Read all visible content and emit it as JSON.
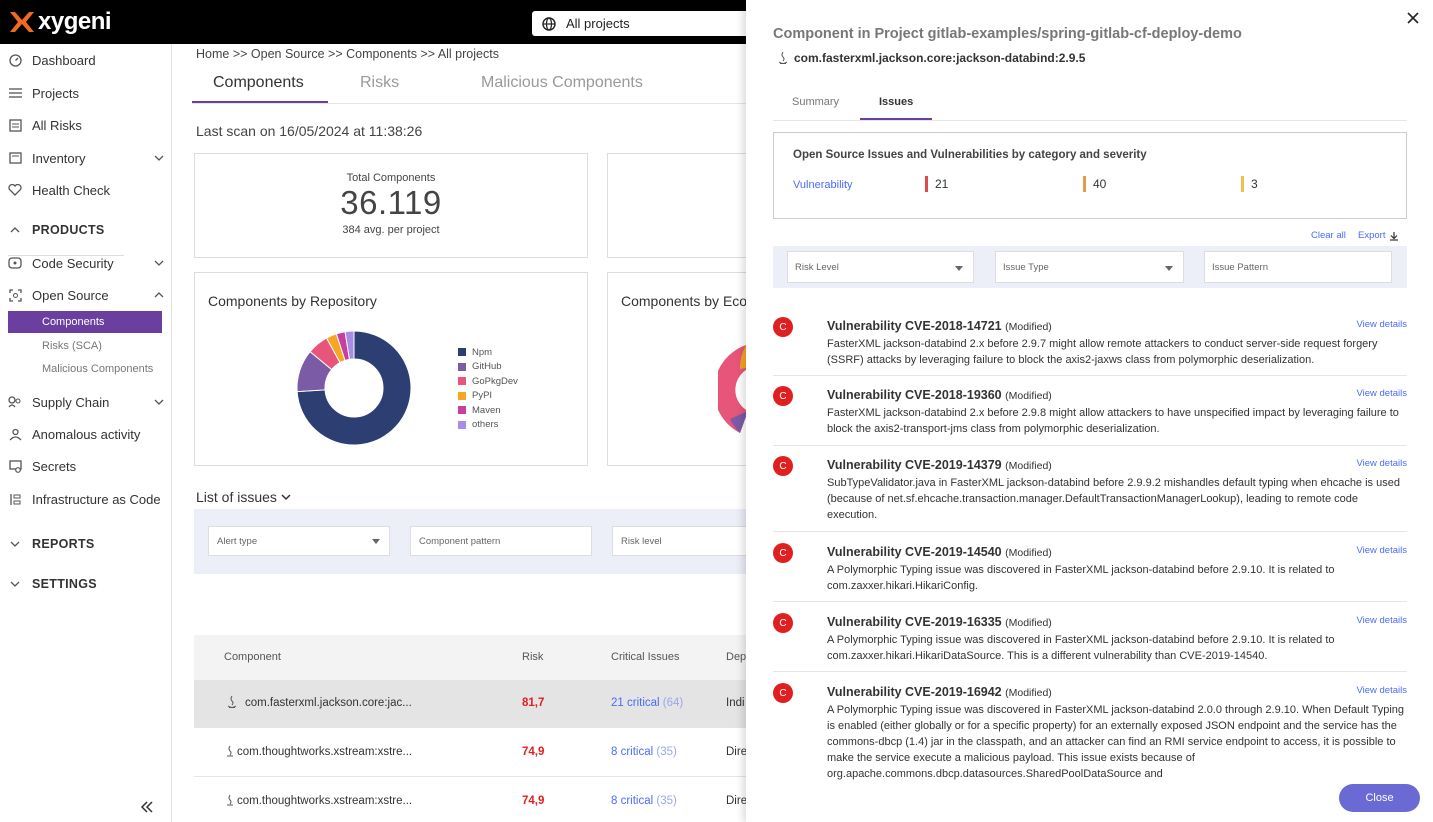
{
  "brand": {
    "name": "xygeni",
    "accent": "#f26b1d",
    "primary": "#6b3fa0"
  },
  "topbar": {
    "project_selector": "All projects"
  },
  "sidebar": {
    "items": [
      {
        "label": "Dashboard",
        "icon": "dashboard-icon"
      },
      {
        "label": "Projects",
        "icon": "list-icon"
      },
      {
        "label": "All Risks",
        "icon": "risks-icon"
      },
      {
        "label": "Inventory",
        "icon": "inventory-icon"
      },
      {
        "label": "Health Check",
        "icon": "health-icon"
      }
    ],
    "products_label": "PRODUCTS",
    "code_security": "Code Security",
    "open_source": "Open Source",
    "open_source_sub": [
      "Components",
      "Risks (SCA)",
      "Malicious Components"
    ],
    "supply_chain": "Supply Chain",
    "anomalous": "Anomalous activity",
    "secrets": "Secrets",
    "iac": "Infrastructure as Code",
    "reports_label": "REPORTS",
    "settings_label": "SETTINGS"
  },
  "main": {
    "breadcrumb": "Home >> Open Source >> Components >> All projects",
    "tabs": [
      "Components",
      "Risks",
      "Malicious Components"
    ],
    "last_scan": "Last scan on 16/05/2024 at 11:38:26",
    "total_components": {
      "label": "Total Components",
      "value": "36.119",
      "sub": "384 avg. per project"
    },
    "by_repository": {
      "title": "Components by Repository",
      "legend": [
        "Npm",
        "GitHub",
        "GoPkgDev",
        "PyPI",
        "Maven",
        "others"
      ]
    },
    "by_ecosystem_title": "Components by Eco",
    "list_issues": "List of issues",
    "filters": {
      "alert_type": "Alert type",
      "component_pattern": "Component pattern",
      "risk_level": "Risk level"
    },
    "table": {
      "headers": [
        "Component",
        "Risk",
        "Critical Issues",
        "Dep"
      ],
      "rows": [
        {
          "component": "com.fasterxml.jackson.core:jac...",
          "risk": "81,7",
          "critical": "21 critical",
          "total": "(64)",
          "dep": "Indi"
        },
        {
          "component": "com.thoughtworks.xstream:xstre...",
          "risk": "74,9",
          "critical": "8 critical",
          "total": "(35)",
          "dep": "Dire"
        },
        {
          "component": "com.thoughtworks.xstream:xstre...",
          "risk": "74,9",
          "critical": "8 critical",
          "total": "(35)",
          "dep": "Dire"
        }
      ]
    }
  },
  "chart_data": {
    "type": "pie",
    "title": "Components by Repository",
    "categories": [
      "Npm",
      "GitHub",
      "GoPkgDev",
      "PyPI",
      "Maven",
      "others"
    ],
    "values": [
      74,
      12,
      6,
      3,
      2.5,
      2.5
    ],
    "colors": [
      "#2d3e73",
      "#7b5aa6",
      "#e8557a",
      "#f5a623",
      "#c83fa0",
      "#a98ce6"
    ]
  },
  "panel": {
    "title": "Component in Project gitlab-examples/spring-gitlab-cf-deploy-demo",
    "component": "com.fasterxml.jackson.core:jackson-databind:2.9.5",
    "tabs": [
      "Summary",
      "Issues"
    ],
    "severity_card": {
      "heading": "Open Source Issues and Vulnerabilities by category and severity",
      "category": "Vulnerability",
      "counts": [
        {
          "value": "21",
          "color": "#e04a4a"
        },
        {
          "value": "40",
          "color": "#e89a4a"
        },
        {
          "value": "3",
          "color": "#f0c04a"
        }
      ]
    },
    "clear_all": "Clear all",
    "export": "Export",
    "filters": {
      "risk_level": "Risk Level",
      "issue_type": "Issue Type",
      "issue_pattern": "Issue Pattern"
    },
    "view_details": "View details",
    "vulns": [
      {
        "badge": "C",
        "title": "Vulnerability CVE-2018-14721",
        "tag": "(Modified)",
        "desc": "FasterXML jackson-databind 2.x before 2.9.7 might allow remote attackers to conduct server-side request forgery (SSRF) attacks by leveraging failure to block the axis2-jaxws class from polymorphic deserialization."
      },
      {
        "badge": "C",
        "title": "Vulnerability CVE-2018-19360",
        "tag": "(Modified)",
        "desc": "FasterXML jackson-databind 2.x before 2.9.8 might allow attackers to have unspecified impact by leveraging failure to block the axis2-transport-jms class from polymorphic deserialization."
      },
      {
        "badge": "C",
        "title": "Vulnerability CVE-2019-14379",
        "tag": "(Modified)",
        "desc": "SubTypeValidator.java in FasterXML jackson-databind before 2.9.9.2 mishandles default typing when ehcache is used (because of net.sf.ehcache.transaction.manager.DefaultTransactionManagerLookup), leading to remote code execution."
      },
      {
        "badge": "C",
        "title": "Vulnerability CVE-2019-14540",
        "tag": "(Modified)",
        "desc": "A Polymorphic Typing issue was discovered in FasterXML jackson-databind before 2.9.10. It is related to com.zaxxer.hikari.HikariConfig."
      },
      {
        "badge": "C",
        "title": "Vulnerability CVE-2019-16335",
        "tag": "(Modified)",
        "desc": "A Polymorphic Typing issue was discovered in FasterXML jackson-databind before 2.9.10. It is related to com.zaxxer.hikari.HikariDataSource. This is a different vulnerability than CVE-2019-14540."
      },
      {
        "badge": "C",
        "title": "Vulnerability CVE-2019-16942",
        "tag": "(Modified)",
        "desc": "A Polymorphic Typing issue was discovered in FasterXML jackson-databind 2.0.0 through 2.9.10. When Default Typing is enabled (either globally or for a specific property) for an externally exposed JSON endpoint and the service has the commons-dbcp (1.4) jar in the classpath, and an attacker can find an RMI service endpoint to access, it is possible to make the service execute a malicious payload. This issue exists because of org.apache.commons.dbcp.datasources.SharedPoolDataSource and"
      }
    ],
    "close_label": "Close"
  }
}
